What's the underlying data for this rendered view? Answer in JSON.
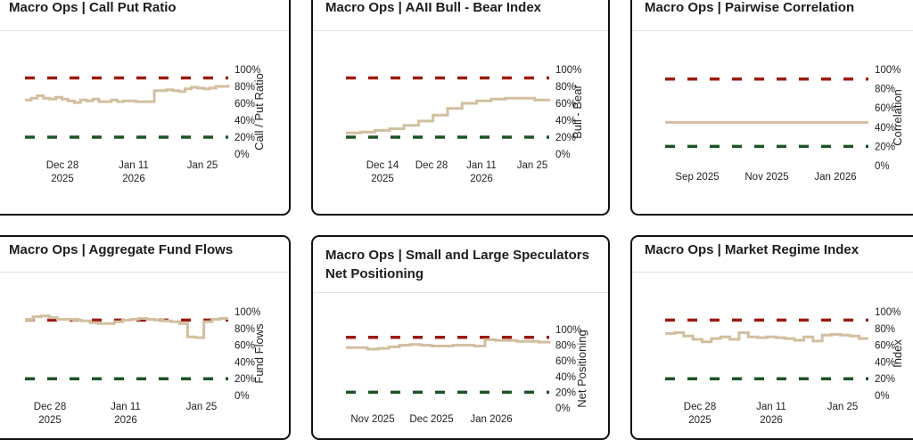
{
  "colors": {
    "series": "#d2bf9f",
    "upper_band": "#9b1a10",
    "lower_band": "#1f5226"
  },
  "chart_data": [
    {
      "type": "line",
      "title": "Macro Ops | Call Put Ratio",
      "ylabel": "Call / Put Ratio",
      "ylim": [
        0,
        100
      ],
      "y_ticks": [
        "100%",
        "80%",
        "60%",
        "40%",
        "20%",
        "0%"
      ],
      "x_ticks": [
        [
          "Dec 28",
          "2025"
        ],
        [
          "Jan 11",
          "2026"
        ],
        [
          "Jan 25",
          ""
        ]
      ],
      "upper_band": 90,
      "lower_band": 20,
      "series": [
        {
          "values": [
            64,
            66,
            69,
            66,
            65,
            67,
            65,
            63,
            61,
            64,
            63,
            65,
            62,
            62,
            64,
            62,
            63,
            63,
            62,
            62,
            62,
            75,
            75,
            76,
            75,
            74,
            77,
            79,
            78,
            77,
            78,
            80,
            80,
            82
          ]
        }
      ]
    },
    {
      "type": "line",
      "title": "Macro Ops | AAII Bull - Bear Index",
      "ylabel": "Bull - Bear",
      "ylim": [
        0,
        100
      ],
      "y_ticks": [
        "100%",
        "80%",
        "60%",
        "40%",
        "20%",
        "0%"
      ],
      "x_ticks": [
        [
          "Dec 14",
          "2025"
        ],
        [
          "Dec 28",
          ""
        ],
        [
          "Jan 11",
          "2026"
        ],
        [
          "Jan 25",
          ""
        ]
      ],
      "upper_band": 90,
      "lower_band": 20,
      "series": [
        {
          "values": [
            25,
            26,
            28,
            30,
            34,
            39,
            46,
            54,
            60,
            63,
            65,
            66,
            66,
            64,
            65
          ]
        }
      ]
    },
    {
      "type": "line",
      "title": "Macro Ops | Pairwise Correlation",
      "ylabel": "Correlation",
      "ylim": [
        0,
        100
      ],
      "y_ticks": [
        "100%",
        "80%",
        "60%",
        "40%",
        "20%",
        "0%"
      ],
      "x_ticks": [
        [
          "Sep 2025",
          ""
        ],
        [
          "Nov 2025",
          ""
        ],
        [
          "Jan 2026",
          ""
        ]
      ],
      "upper_band": 90,
      "lower_band": 20,
      "series": [
        {
          "values": [
            45,
            45,
            45,
            45,
            45,
            45,
            45,
            45,
            45,
            45
          ]
        }
      ]
    },
    {
      "type": "line",
      "title": "Macro Ops | Aggregate Fund Flows",
      "ylabel": "Fund Flows",
      "ylim": [
        0,
        100
      ],
      "y_ticks": [
        "100%",
        "80%",
        "60%",
        "40%",
        "20%",
        "0%"
      ],
      "x_ticks": [
        [
          "Dec 28",
          "2025"
        ],
        [
          "Jan 11",
          "2026"
        ],
        [
          "Jan 25",
          ""
        ]
      ],
      "upper_band": 90,
      "lower_band": 20,
      "series": [
        {
          "values": [
            90,
            94,
            95,
            93,
            91,
            91,
            90,
            89,
            87,
            86,
            86,
            88,
            90,
            91,
            92,
            91,
            90,
            89,
            88,
            86,
            70,
            69,
            88,
            91,
            92,
            92
          ]
        }
      ]
    },
    {
      "type": "line",
      "title": "Macro Ops | Small and Large Speculators Net Positioning",
      "ylabel": "Net Positioning",
      "ylim": [
        0,
        100
      ],
      "y_ticks": [
        "100%",
        "80%",
        "60%",
        "40%",
        "20%",
        "0%"
      ],
      "x_ticks": [
        [
          "Nov 2025",
          ""
        ],
        [
          "Dec 2025",
          ""
        ],
        [
          "Jan 2026",
          ""
        ]
      ],
      "upper_band": 90,
      "lower_band": 20,
      "series": [
        {
          "values": [
            77,
            77,
            75,
            76,
            78,
            80,
            81,
            80,
            79,
            79,
            80,
            80,
            79,
            87,
            86,
            86,
            85,
            85,
            84,
            82
          ]
        }
      ]
    },
    {
      "type": "line",
      "title": "Macro Ops | Market Regime Index",
      "ylabel": "Index",
      "ylim": [
        0,
        100
      ],
      "y_ticks": [
        "100%",
        "80%",
        "60%",
        "40%",
        "20%",
        "0%"
      ],
      "x_ticks": [
        [
          "Dec 28",
          "2025"
        ],
        [
          "Jan 11",
          "2026"
        ],
        [
          "Jan 25",
          ""
        ]
      ],
      "upper_band": 90,
      "lower_band": 20,
      "series": [
        {
          "values": [
            74,
            75,
            71,
            67,
            64,
            68,
            70,
            67,
            75,
            70,
            69,
            70,
            69,
            68,
            66,
            70,
            65,
            72,
            73,
            72,
            71,
            68,
            68
          ]
        }
      ]
    }
  ]
}
